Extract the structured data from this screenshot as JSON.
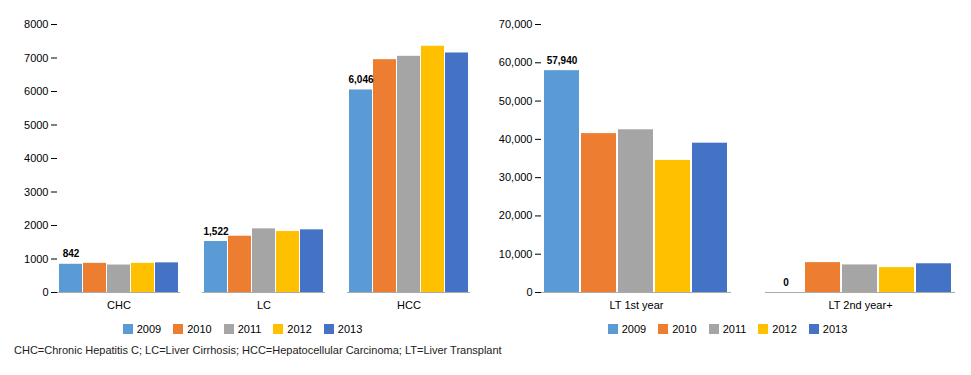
{
  "chart_data": [
    {
      "type": "bar",
      "categories": [
        "CHC",
        "LC",
        "HCC"
      ],
      "series": [
        {
          "name": "2009",
          "color": "#5B9BD5",
          "values": [
            842,
            1522,
            6046
          ]
        },
        {
          "name": "2010",
          "color": "#ED7D31",
          "values": [
            870,
            1680,
            6950
          ]
        },
        {
          "name": "2011",
          "color": "#A5A5A5",
          "values": [
            820,
            1900,
            7050
          ]
        },
        {
          "name": "2012",
          "color": "#FFC000",
          "values": [
            870,
            1820,
            7350
          ]
        },
        {
          "name": "2013",
          "color": "#4472C4",
          "values": [
            885,
            1870,
            7150
          ]
        }
      ],
      "annotations": [
        {
          "text": "842",
          "category": "CHC",
          "series": "2009"
        },
        {
          "text": "1,522",
          "category": "LC",
          "series": "2009"
        },
        {
          "text": "6,046",
          "category": "HCC",
          "series": "2009"
        }
      ],
      "ylim": [
        0,
        8000
      ],
      "yticks": [
        0,
        1000,
        2000,
        3000,
        4000,
        5000,
        6000,
        7000,
        8000
      ],
      "grid": false,
      "legend": "lower center"
    },
    {
      "type": "bar",
      "categories": [
        "LT 1st year",
        "LT 2nd year+"
      ],
      "series": [
        {
          "name": "2009",
          "color": "#5B9BD5",
          "values": [
            57940,
            0
          ]
        },
        {
          "name": "2010",
          "color": "#ED7D31",
          "values": [
            41500,
            7800
          ]
        },
        {
          "name": "2011",
          "color": "#A5A5A5",
          "values": [
            42500,
            7200
          ]
        },
        {
          "name": "2012",
          "color": "#FFC000",
          "values": [
            34500,
            6500
          ]
        },
        {
          "name": "2013",
          "color": "#4472C4",
          "values": [
            39000,
            7500
          ]
        }
      ],
      "annotations": [
        {
          "text": "57,940",
          "category": "LT 1st year",
          "series": "2009"
        },
        {
          "text": "0",
          "category": "LT 2nd year+",
          "series": "2009"
        }
      ],
      "ylim": [
        0,
        70000
      ],
      "yticks": [
        0,
        {
          "value": 10000,
          "label": "10,000"
        },
        {
          "value": 20000,
          "label": "20,000"
        },
        {
          "value": 30000,
          "label": "30,000"
        },
        {
          "value": 40000,
          "label": "40,000"
        },
        {
          "value": 50000,
          "label": "50,000"
        },
        {
          "value": 60000,
          "label": "60,000"
        },
        {
          "value": 70000,
          "label": "70,000"
        }
      ],
      "grid": false,
      "legend": "lower center"
    }
  ],
  "footnote": "CHC=Chronic Hepatitis C; LC=Liver Cirrhosis; HCC=Hepatocellular Carcinoma; LT=Liver Transplant"
}
